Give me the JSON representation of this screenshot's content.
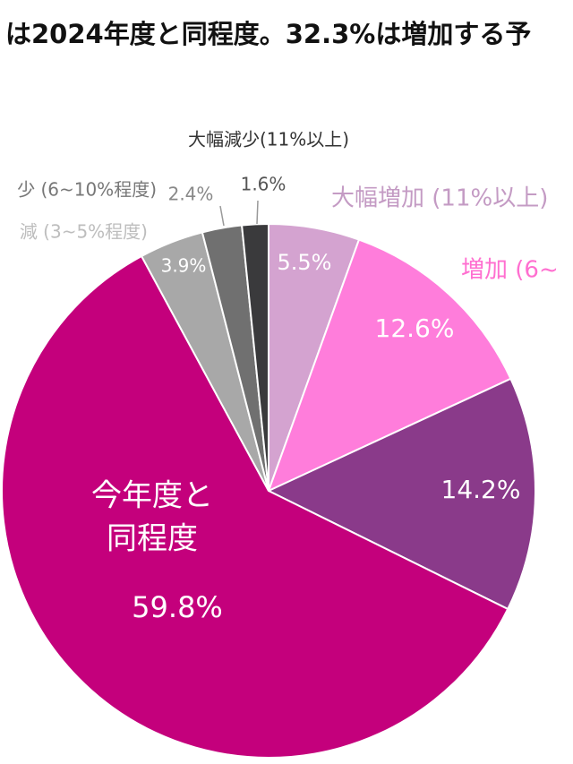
{
  "chart_data": {
    "type": "pie",
    "title": "は2024年度と同程度。32.3%は増加する予",
    "categories": [
      "大幅増加 (11%以上)",
      "増加 (6~",
      null,
      [
        "今年度と",
        "同程度"
      ],
      "減 (3~5%程度)",
      "少 (6~10%程度)",
      "大幅減少(11%以上)"
    ],
    "values": [
      5.5,
      12.6,
      14.2,
      59.8,
      3.9,
      2.4,
      1.6
    ],
    "value_labels": [
      "5.5%",
      "12.6%",
      "14.2%",
      "59.8%",
      "3.9%",
      "2.4%",
      "1.6%"
    ],
    "colors": [
      "#d4a3d0",
      "#ff7ddb",
      "#8a3a8a",
      "#c4007c",
      "#a8a8a8",
      "#707070",
      "#3a3a3c"
    ]
  }
}
